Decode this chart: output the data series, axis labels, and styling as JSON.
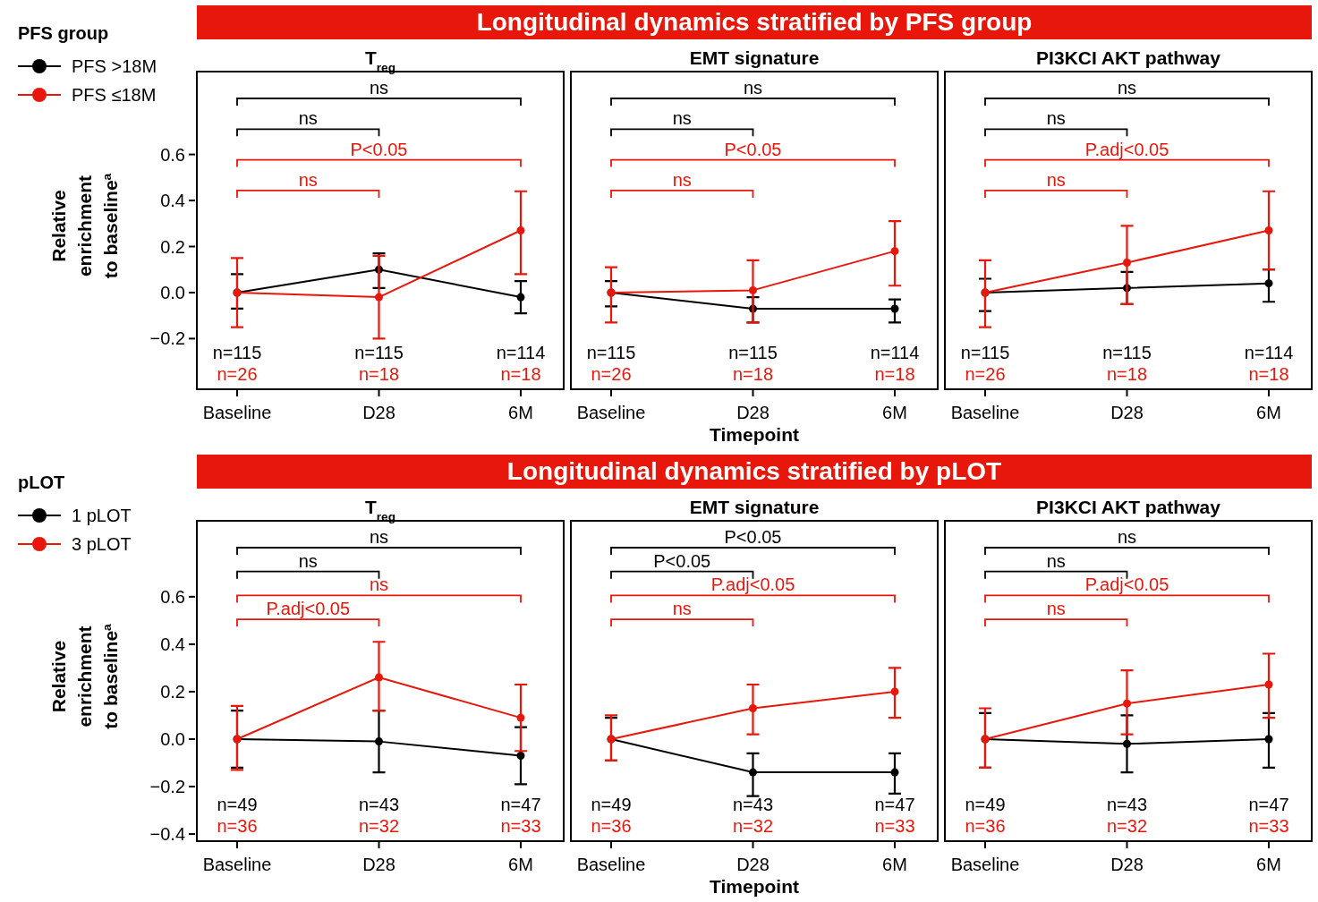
{
  "chart_data": [
    {
      "type": "line",
      "title": "T$_{reg}$",
      "ylabel": "Relative enrichment to baseline$^{a}$",
      "legend": "top left",
      "legend_title": "PFS group",
      "marker": "circle",
      "categories": [
        "Baseline",
        "D28",
        "6M"
      ],
      "ylim": [
        -0.42,
        0.96
      ],
      "yticks": [
        {
          "value": -0.2,
          "label": "−0.2"
        },
        {
          "value": 0,
          "label": "0.0"
        },
        {
          "value": 0.2,
          "label": "0.2"
        },
        {
          "value": 0.4,
          "label": "0.4"
        },
        {
          "value": 0.6,
          "label": "0.6"
        }
      ],
      "series": [
        {
          "name": "PFS >18M",
          "color": "#000000",
          "values": [
            0,
            0.1,
            -0.02
          ],
          "errors": [
            [
              -0.07,
              0.08
            ],
            [
              0.02,
              0.17
            ],
            [
              -0.09,
              0.05
            ]
          ]
        },
        {
          "name": "PFS ≤18M",
          "color": "#e8170c",
          "values": [
            0,
            -0.02,
            0.27
          ],
          "errors": [
            [
              -0.15,
              0.15
            ],
            [
              -0.2,
              0.16
            ],
            [
              0.08,
              0.44
            ]
          ]
        }
      ],
      "annotations": [
        "ns",
        "ns",
        "P<0.05",
        "ns",
        "n=115",
        "n=115",
        "n=114",
        "n=26",
        "n=18",
        "n=18"
      ]
    },
    {
      "type": "line",
      "subtitle": "Longitudinal dynamics stratified by PFS group",
      "title": "EMT signature",
      "xlabel": "Timepoint",
      "marker": "circle",
      "tick_labels": "x",
      "categories": [
        "Baseline",
        "D28",
        "6M"
      ],
      "ylim": [
        -0.42,
        0.96
      ],
      "series": [
        {
          "color": "#000000",
          "values": [
            0,
            -0.07,
            -0.07
          ],
          "errors": [
            [
              -0.06,
              0.05
            ],
            [
              -0.13,
              -0.02
            ],
            [
              -0.13,
              -0.03
            ]
          ]
        },
        {
          "color": "#e8170c",
          "values": [
            0,
            0.01,
            0.18
          ],
          "errors": [
            [
              -0.13,
              0.11
            ],
            [
              -0.13,
              0.14
            ],
            [
              0.03,
              0.31
            ]
          ]
        }
      ],
      "annotations": [
        "ns",
        "ns",
        "P<0.05",
        "ns",
        "n=115",
        "n=115",
        "n=114",
        "n=26",
        "n=18",
        "n=18"
      ]
    },
    {
      "type": "line",
      "title": "PI3KCI AKT pathway",
      "marker": "circle",
      "tick_labels": "x",
      "categories": [
        "Baseline",
        "D28",
        "6M"
      ],
      "ylim": [
        -0.42,
        0.96
      ],
      "series": [
        {
          "color": "#000000",
          "values": [
            0,
            0.02,
            0.04
          ],
          "errors": [
            [
              -0.08,
              0.06
            ],
            [
              -0.05,
              0.09
            ],
            [
              -0.04,
              0.1
            ]
          ]
        },
        {
          "color": "#e8170c",
          "values": [
            0,
            0.13,
            0.27
          ],
          "errors": [
            [
              -0.15,
              0.14
            ],
            [
              -0.05,
              0.29
            ],
            [
              0.1,
              0.44
            ]
          ]
        }
      ],
      "annotations": [
        "ns",
        "ns",
        "P.adj<0.05",
        "ns",
        "n=115",
        "n=115",
        "n=114",
        "n=26",
        "n=18",
        "n=18"
      ]
    },
    {
      "type": "line",
      "title": "T$_{reg}$",
      "ylabel": "Relative enrichment to baseline$^{a}$",
      "legend": "top left",
      "legend_title": "pLOT",
      "marker": "circle",
      "categories": [
        "Baseline",
        "D28",
        "6M"
      ],
      "ylim": [
        -0.43,
        0.92
      ],
      "yticks": [
        {
          "value": -0.4,
          "label": "−0.4"
        },
        {
          "value": -0.2,
          "label": "−0.2"
        },
        {
          "value": 0,
          "label": "0.0"
        },
        {
          "value": 0.2,
          "label": "0.2"
        },
        {
          "value": 0.4,
          "label": "0.4"
        },
        {
          "value": 0.6,
          "label": "0.6"
        }
      ],
      "series": [
        {
          "name": "1 pLOT",
          "color": "#000000",
          "values": [
            0,
            -0.01,
            -0.07
          ],
          "errors": [
            [
              -0.12,
              0.12
            ],
            [
              -0.14,
              0.12
            ],
            [
              -0.19,
              0.05
            ]
          ]
        },
        {
          "name": "3 pLOT",
          "color": "#e8170c",
          "values": [
            0,
            0.26,
            0.09
          ],
          "errors": [
            [
              -0.13,
              0.14
            ],
            [
              0.12,
              0.41
            ],
            [
              -0.05,
              0.23
            ]
          ]
        }
      ],
      "annotations": [
        "ns",
        "ns",
        "ns",
        "P.adj<0.05",
        "n=49",
        "n=43",
        "n=47",
        "n=36",
        "n=32",
        "n=33"
      ]
    },
    {
      "type": "line",
      "subtitle": "Longitudinal dynamics stratified by pLOT",
      "title": "EMT signature",
      "xlabel": "Timepoint",
      "marker": "circle",
      "tick_labels": "x",
      "categories": [
        "Baseline",
        "D28",
        "6M"
      ],
      "ylim": [
        -0.43,
        0.92
      ],
      "series": [
        {
          "color": "#000000",
          "values": [
            0,
            -0.14,
            -0.14
          ],
          "errors": [
            [
              -0.09,
              0.09
            ],
            [
              -0.24,
              -0.06
            ],
            [
              -0.23,
              -0.06
            ]
          ]
        },
        {
          "color": "#e8170c",
          "values": [
            0,
            0.13,
            0.2
          ],
          "errors": [
            [
              -0.09,
              0.1
            ],
            [
              0.02,
              0.23
            ],
            [
              0.09,
              0.3
            ]
          ]
        }
      ],
      "annotations": [
        "P<0.05",
        "P<0.05",
        "P.adj<0.05",
        "ns",
        "n=49",
        "n=43",
        "n=47",
        "n=36",
        "n=32",
        "n=33"
      ]
    },
    {
      "type": "line",
      "title": "PI3KCI AKT pathway",
      "marker": "circle",
      "tick_labels": "x",
      "categories": [
        "Baseline",
        "D28",
        "6M"
      ],
      "ylim": [
        -0.43,
        0.92
      ],
      "series": [
        {
          "color": "#000000",
          "values": [
            0,
            -0.02,
            0
          ],
          "errors": [
            [
              -0.12,
              0.11
            ],
            [
              -0.14,
              0.1
            ],
            [
              -0.12,
              0.11
            ]
          ]
        },
        {
          "color": "#e8170c",
          "values": [
            0,
            0.15,
            0.23
          ],
          "errors": [
            [
              -0.12,
              0.13
            ],
            [
              0.02,
              0.29
            ],
            [
              0.09,
              0.36
            ]
          ]
        }
      ],
      "annotations": [
        "ns",
        "ns",
        "P.adj<0.05",
        "ns",
        "n=49",
        "n=43",
        "n=47",
        "n=36",
        "n=32",
        "n=33"
      ]
    }
  ]
}
